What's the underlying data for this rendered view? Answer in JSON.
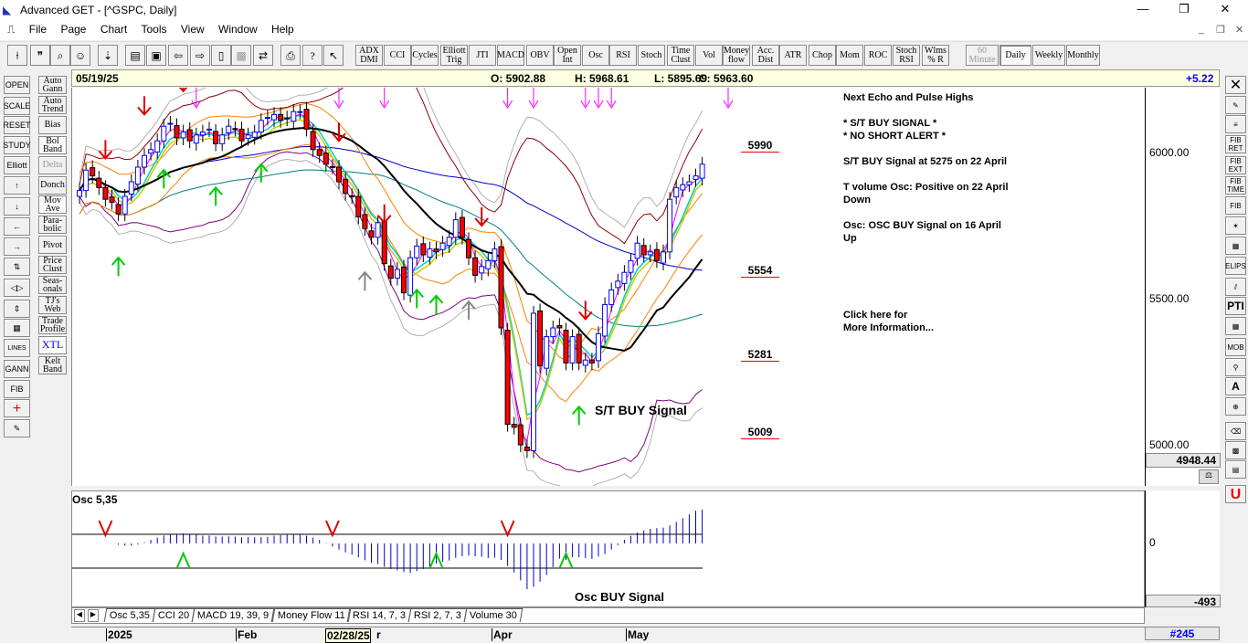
{
  "window": {
    "title": "Advanced GET - [^GSPC, Daily]",
    "controls": [
      "—",
      "❐",
      "✕"
    ],
    "inner_controls": [
      "_",
      "❐",
      "✕"
    ]
  },
  "menu": [
    "File",
    "Page",
    "Chart",
    "Tools",
    "View",
    "Window",
    "Help"
  ],
  "toolbar": {
    "icons": [
      "cursor-icon",
      "quote-icon",
      "search-icon",
      "person-icon",
      "download-icon",
      "new-page-icon",
      "save-icon",
      "prev-page-icon",
      "next-page-icon",
      "layout-icon",
      "disabled-grid-icon",
      "link-icon",
      "print-icon",
      "help-icon",
      "context-help-icon"
    ],
    "studies": [
      "ADX\nDMI",
      "CCI",
      "Cycles",
      "Elliott\nTrig",
      "JTI",
      "MACD",
      "OBV",
      "Open\nInt",
      "Osc",
      "RSI",
      "Stoch",
      "Time\nClust",
      "Vol",
      "Money\nflow",
      "Acc.\nDist",
      "ATR",
      "Chop",
      "Mom",
      "ROC",
      "Stoch\nRSI",
      "Wlms\n% R"
    ],
    "periods": [
      {
        "label": "60\nMinute",
        "disabled": true
      },
      {
        "label": "Daily",
        "selected": true
      },
      {
        "label": "Weekly"
      },
      {
        "label": "Monthly"
      }
    ]
  },
  "left_tools": [
    "OPEN",
    "SCALE",
    "RESET",
    "STUDY",
    "Elliott",
    "↑",
    "↓",
    "←",
    "→",
    "⇅",
    "◁▷",
    "⇕",
    "▦",
    "LINES",
    "GANN",
    "FIB",
    "+",
    "✎"
  ],
  "left_studies": [
    "Auto\nGann",
    "Auto\nTrend",
    "Bias",
    "Bol\nBand",
    "Delta",
    "Donch",
    "Mov\nAve",
    "Para-\nbolic",
    "Pivot",
    "Price\nClust",
    "Seas-\nonals",
    "TJ's\nWeb",
    "Trade\nProfile",
    "XTL",
    "Kelt\nBand"
  ],
  "right_tools": [
    "✕",
    "✎",
    "≡",
    "FIB\nRET",
    "FIB\nEXT",
    "FIB\nTIME",
    "FIB",
    "✶",
    "▦",
    "ELIPS",
    "⫽",
    "PTI",
    "▦",
    "MOB",
    "⚲",
    "A",
    "⊕",
    "⌫",
    "▩",
    "▤",
    "U"
  ],
  "info": {
    "date": "05/19/25",
    "open": "O: 5902.88",
    "high": "H: 5968.61",
    "low": "L: 5895.69",
    "close": "C: 5963.60",
    "change": "+5.22"
  },
  "colors": {
    "up": "#0000ff",
    "down": "#ff0000",
    "buy_arrow": "#00cc00",
    "sell_arrow": "#dd0000",
    "pulse": "#ff00ff",
    "level": "#e00000"
  },
  "panel": {
    "lines": [
      "Next Echo and Pulse Highs",
      "* S/T BUY SIGNAL *",
      "* NO SHORT ALERT *",
      "S/T BUY Signal at 5275 on 22 April",
      "T volume Osc: Positive on 22 April",
      "Down",
      "Osc: OSC BUY Signal on 16 April",
      "Up",
      "Click here for",
      "More Information..."
    ]
  },
  "levels": [
    "5990",
    "5554",
    "5281",
    "5009"
  ],
  "annotations": {
    "st_buy": "S/T BUY Signal",
    "osc_buy": "Osc BUY Signal"
  },
  "price_axis": {
    "ticks": [
      "6000.00",
      "5500.00",
      "5000.00"
    ],
    "current": "4948.44"
  },
  "osc_pane": {
    "title": "Osc 5,35",
    "ticks": [
      "0"
    ],
    "current": "-493"
  },
  "tabs": [
    "Osc 5,35",
    "CCI 20",
    "MACD 19, 39, 9",
    "Money Flow 11",
    "RSI 14, 7, 3",
    "RSI 2, 7, 3",
    "Volume 30"
  ],
  "date_axis": {
    "labels": [
      "2025",
      "Feb",
      "02/28/25",
      "r",
      "Apr",
      "May"
    ],
    "bar_number": "#245"
  },
  "chart_data": {
    "type": "candlestick",
    "symbol": "^GSPC",
    "interval": "Daily",
    "ylim": [
      4850,
      6200
    ],
    "yticks": [
      5000,
      5500,
      6000
    ],
    "x_labels": [
      "2025",
      "Feb",
      "Apr",
      "May"
    ],
    "overlays": [
      "Bollinger Bands",
      "Moving Averages",
      "XTL"
    ],
    "closes": [
      5870,
      5940,
      5920,
      5880,
      5840,
      5830,
      5790,
      5850,
      5900,
      5950,
      5990,
      6010,
      6040,
      6090,
      6100,
      6050,
      6070,
      6040,
      6060,
      6070,
      6080,
      6030,
      6060,
      6090,
      6080,
      6040,
      6060,
      6070,
      6110,
      6120,
      6130,
      6110,
      6115,
      6140,
      6140,
      6080,
      6010,
      5990,
      5960,
      5950,
      5900,
      5860,
      5850,
      5780,
      5740,
      5710,
      5760,
      5620,
      5570,
      5600,
      5520,
      5640,
      5680,
      5650,
      5670,
      5660,
      5690,
      5710,
      5770,
      5710,
      5640,
      5580,
      5610,
      5630,
      5670,
      5400,
      5070,
      5060,
      5000,
      4980,
      5450,
      5270,
      5370,
      5400,
      5400,
      5280,
      5370,
      5280,
      5290,
      5280,
      5380,
      5480,
      5530,
      5560,
      5590,
      5630,
      5690,
      5650,
      5660,
      5630,
      5660,
      5840,
      5880,
      5890,
      5900,
      5920,
      5960
    ],
    "levels": [
      5990,
      5554,
      5281,
      5009
    ],
    "oscillator": {
      "name": "Osc 5,35",
      "ymin": -493
    }
  }
}
